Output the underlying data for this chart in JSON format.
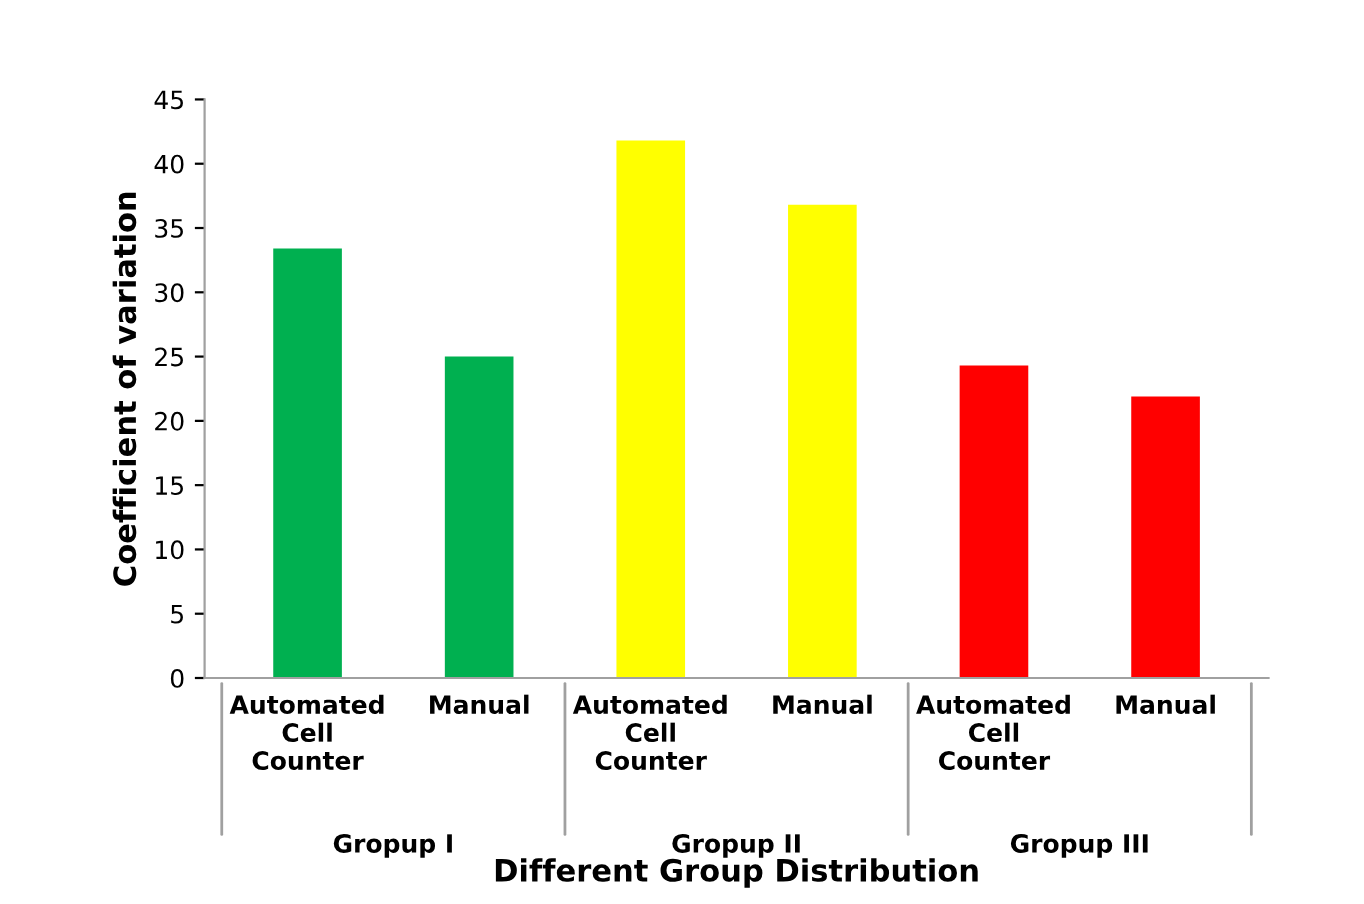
{
  "chart_data": {
    "type": "bar",
    "xlabel": "Different Group Distribution",
    "ylabel": "Coefficient of variation",
    "categories": [
      "Automated\nCell\nCounter",
      "Manual",
      "Automated\nCell\nCounter",
      "Manual",
      "Automated\nCell\nCounter",
      "Manual"
    ],
    "values": [
      33.4,
      25,
      41.8,
      36.8,
      24.3,
      21.9
    ],
    "colors": [
      "#00b050",
      "#00b050",
      "#ffff00",
      "#ffff00",
      "#ff0000",
      "#ff0000"
    ],
    "ylim": [
      0,
      45
    ],
    "yticks": [
      0,
      5,
      10,
      15,
      20,
      25,
      30,
      35,
      40,
      45
    ],
    "grid": false,
    "annotations": [
      "Gropup I",
      "Gropup II",
      "Gropup III"
    ]
  }
}
